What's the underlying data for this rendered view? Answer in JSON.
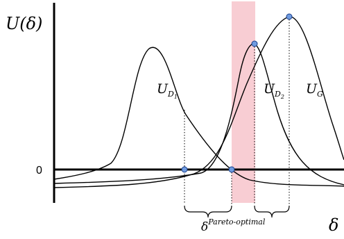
{
  "labels": {
    "y_axis": "U(δ)",
    "x_axis": "δ",
    "zero_tick": "0",
    "curve_d1_main": "U",
    "curve_d1_sub": "D",
    "curve_d1_subsub": "1",
    "curve_d2_main": "U",
    "curve_d2_sub": "D",
    "curve_d2_subsub": "2",
    "curve_g_main": "U",
    "curve_g_sub": "G",
    "pareto_main": "δ",
    "pareto_sup": "Pareto-optimal"
  },
  "colors": {
    "curve": "#000000",
    "marker_fill": "#6f9be0",
    "marker_stroke": "#1a3f8a",
    "pareto_band": "#f8cdd3"
  }
}
